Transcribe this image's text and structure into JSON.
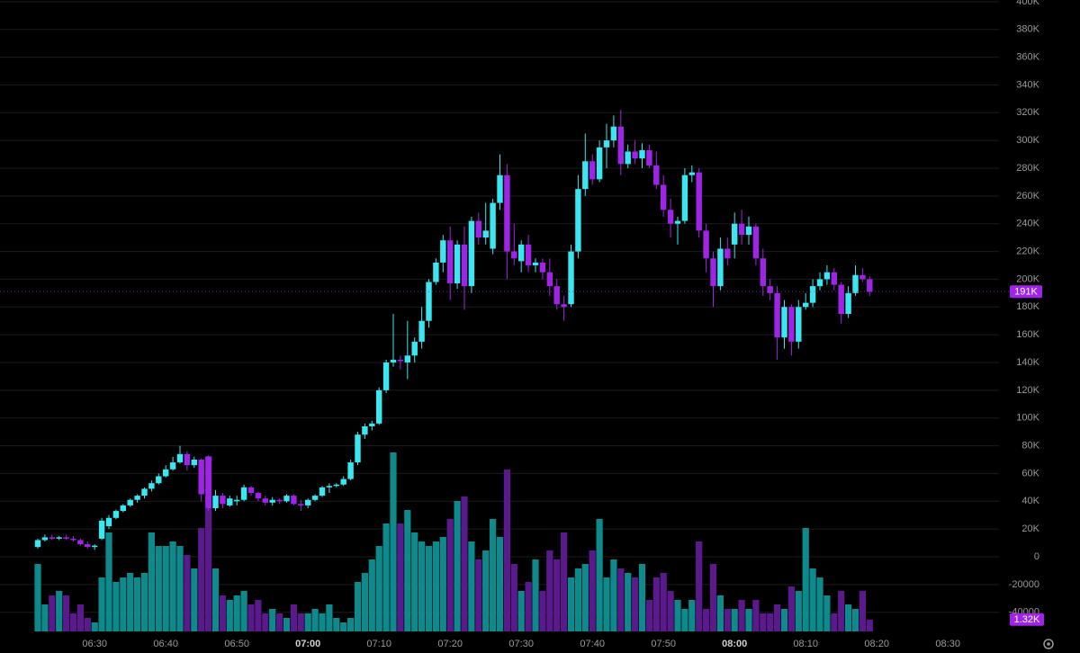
{
  "chart_data": {
    "type": "candlestick",
    "x": [
      "06:22",
      "06:23",
      "06:24",
      "06:25",
      "06:26",
      "06:27",
      "06:28",
      "06:29",
      "06:30",
      "06:31",
      "06:32",
      "06:33",
      "06:34",
      "06:35",
      "06:36",
      "06:37",
      "06:38",
      "06:39",
      "06:40",
      "06:41",
      "06:42",
      "06:43",
      "06:44",
      "06:45",
      "06:46",
      "06:47",
      "06:48",
      "06:49",
      "06:50",
      "06:51",
      "06:52",
      "06:53",
      "06:54",
      "06:55",
      "06:56",
      "06:57",
      "06:58",
      "06:59",
      "07:00",
      "07:01",
      "07:02",
      "07:03",
      "07:04",
      "07:05",
      "07:06",
      "07:07",
      "07:08",
      "07:09",
      "07:10",
      "07:11",
      "07:12",
      "07:13",
      "07:14",
      "07:15",
      "07:16",
      "07:17",
      "07:18",
      "07:19",
      "07:20",
      "07:21",
      "07:22",
      "07:23",
      "07:24",
      "07:25",
      "07:26",
      "07:27",
      "07:28",
      "07:29",
      "07:30",
      "07:31",
      "07:32",
      "07:33",
      "07:34",
      "07:35",
      "07:36",
      "07:37",
      "07:38",
      "07:39",
      "07:40",
      "07:41",
      "07:42",
      "07:43",
      "07:44",
      "07:45",
      "07:46",
      "07:47",
      "07:48",
      "07:49",
      "07:50",
      "07:51",
      "07:52",
      "07:53",
      "07:54",
      "07:55",
      "07:56",
      "07:57",
      "07:58",
      "07:59",
      "08:00",
      "08:01",
      "08:02",
      "08:03",
      "08:04",
      "08:05",
      "08:06",
      "08:07",
      "08:08",
      "08:09",
      "08:10",
      "08:11",
      "08:12",
      "08:13",
      "08:14",
      "08:15",
      "08:16",
      "08:17",
      "08:18",
      "08:19"
    ],
    "open": [
      7000,
      12000,
      14000,
      13000,
      14000,
      13000,
      12000,
      9000,
      7000,
      13000,
      22000,
      28000,
      33000,
      37000,
      41000,
      44000,
      49000,
      53000,
      58000,
      63000,
      68000,
      74000,
      66000,
      70000,
      72000,
      35000,
      44000,
      37000,
      40000,
      41000,
      50000,
      46000,
      42000,
      39000,
      41000,
      40000,
      44000,
      38000,
      37000,
      41000,
      44000,
      50000,
      51000,
      52000,
      56000,
      68000,
      88000,
      94000,
      96000,
      120000,
      140000,
      142000,
      140000,
      145000,
      155000,
      170000,
      198000,
      212000,
      228000,
      197000,
      225000,
      195000,
      242000,
      230000,
      222000,
      255000,
      275000,
      220000,
      213000,
      225000,
      210000,
      212000,
      205000,
      195000,
      182000,
      182000,
      220000,
      265000,
      285000,
      272000,
      295000,
      300000,
      310000,
      283000,
      292000,
      287000,
      293000,
      282000,
      268000,
      250000,
      240000,
      242000,
      275000,
      277000,
      235000,
      215000,
      195000,
      222000,
      225000,
      240000,
      232000,
      238000,
      215000,
      195000,
      190000,
      158000,
      180000,
      155000,
      180000,
      183000,
      195000,
      200000,
      205000,
      196000,
      175000,
      190000,
      203000,
      200000
    ],
    "high": [
      13000,
      16000,
      16000,
      15000,
      16000,
      15000,
      13000,
      11000,
      9000,
      28000,
      30000,
      34000,
      38000,
      42000,
      45000,
      50000,
      55000,
      60000,
      66000,
      72000,
      80000,
      76000,
      72000,
      71000,
      73000,
      48000,
      46000,
      44000,
      44000,
      52000,
      51000,
      47000,
      44000,
      43000,
      42000,
      45000,
      45000,
      41000,
      42000,
      45000,
      51000,
      53000,
      53000,
      58000,
      70000,
      90000,
      96000,
      98000,
      122000,
      142000,
      175000,
      145000,
      170000,
      158000,
      180000,
      200000,
      215000,
      232000,
      238000,
      228000,
      238000,
      245000,
      248000,
      255000,
      258000,
      290000,
      283000,
      240000,
      228000,
      232000,
      215000,
      215000,
      215000,
      200000,
      188000,
      225000,
      275000,
      305000,
      290000,
      300000,
      312000,
      318000,
      322000,
      297000,
      300000,
      298000,
      297000,
      292000,
      275000,
      258000,
      245000,
      280000,
      282000,
      280000,
      240000,
      220000,
      230000,
      230000,
      248000,
      250000,
      245000,
      240000,
      222000,
      200000,
      195000,
      185000,
      182000,
      185000,
      190000,
      200000,
      205000,
      210000,
      208000,
      198000,
      195000,
      210000,
      208000,
      202000
    ],
    "low": [
      6000,
      11000,
      12000,
      12000,
      12000,
      11000,
      8000,
      6000,
      5000,
      12000,
      20000,
      27000,
      32000,
      36000,
      39000,
      42000,
      47000,
      52000,
      57000,
      62000,
      67000,
      62000,
      64000,
      40000,
      33000,
      33000,
      35000,
      36000,
      37000,
      40000,
      44000,
      40000,
      37000,
      37000,
      38000,
      39000,
      37000,
      33000,
      35000,
      40000,
      43000,
      46000,
      50000,
      51000,
      55000,
      66000,
      85000,
      91000,
      95000,
      118000,
      137000,
      135000,
      128000,
      140000,
      150000,
      165000,
      196000,
      205000,
      185000,
      193000,
      178000,
      190000,
      225000,
      225000,
      218000,
      250000,
      200000,
      210000,
      205000,
      205000,
      205000,
      200000,
      188000,
      178000,
      170000,
      180000,
      215000,
      260000,
      268000,
      270000,
      280000,
      295000,
      275000,
      280000,
      283000,
      280000,
      280000,
      265000,
      245000,
      230000,
      225000,
      240000,
      270000,
      230000,
      205000,
      180000,
      192000,
      210000,
      215000,
      225000,
      225000,
      210000,
      188000,
      185000,
      142000,
      150000,
      145000,
      150000,
      178000,
      180000,
      192000,
      196000,
      192000,
      168000,
      172000,
      188000,
      198000,
      188000
    ],
    "close": [
      12000,
      14000,
      13000,
      14000,
      13000,
      12000,
      9000,
      7000,
      8000,
      26000,
      28000,
      33000,
      37000,
      41000,
      44000,
      49000,
      53000,
      58000,
      63000,
      68000,
      74000,
      66000,
      70000,
      45000,
      35000,
      44000,
      38000,
      42000,
      41000,
      50000,
      46000,
      42000,
      39000,
      41000,
      40000,
      44000,
      38000,
      37000,
      41000,
      44000,
      50000,
      51000,
      52000,
      56000,
      68000,
      88000,
      94000,
      96000,
      120000,
      140000,
      142000,
      141000,
      145000,
      155000,
      170000,
      198000,
      212000,
      228000,
      197000,
      225000,
      195000,
      242000,
      230000,
      235000,
      255000,
      275000,
      220000,
      215000,
      225000,
      210000,
      212000,
      205000,
      195000,
      182000,
      180000,
      220000,
      265000,
      285000,
      272000,
      295000,
      300000,
      310000,
      283000,
      292000,
      287000,
      293000,
      282000,
      268000,
      250000,
      240000,
      242000,
      275000,
      277000,
      235000,
      215000,
      195000,
      222000,
      215000,
      240000,
      232000,
      238000,
      215000,
      195000,
      190000,
      158000,
      180000,
      155000,
      180000,
      183000,
      195000,
      200000,
      205000,
      196000,
      175000,
      190000,
      203000,
      200000,
      191000
    ],
    "volume": [
      7500,
      3000,
      4000,
      4500,
      4000,
      2000,
      3000,
      1500,
      1000,
      6000,
      11000,
      5500,
      6000,
      6500,
      6000,
      6500,
      11000,
      9500,
      9500,
      10000,
      9500,
      8500,
      7000,
      11500,
      19500,
      7000,
      4000,
      3500,
      4000,
      4500,
      3000,
      3500,
      2000,
      2500,
      2000,
      1500,
      3000,
      2000,
      2000,
      2500,
      2000,
      3000,
      1500,
      1000,
      1500,
      5500,
      6500,
      8000,
      9500,
      12000,
      19900,
      12000,
      13500,
      11000,
      10000,
      9500,
      10000,
      10500,
      12500,
      14500,
      15000,
      10000,
      8000,
      9000,
      12500,
      10500,
      18000,
      7500,
      4500,
      5500,
      8000,
      4500,
      9000,
      8000,
      11000,
      6000,
      7000,
      7500,
      9000,
      12500,
      6000,
      8000,
      7000,
      6500,
      6000,
      7500,
      3500,
      6000,
      6500,
      4500,
      3500,
      2500,
      3500,
      10000,
      2500,
      7500,
      4000,
      2500,
      2500,
      3500,
      2500,
      3500,
      2000,
      2000,
      3000,
      2500,
      5000,
      4500,
      11500,
      7000,
      6000,
      4000,
      2000,
      4500,
      3000,
      2500,
      4500,
      1320
    ],
    "colors": {
      "up": "#3ae6f0",
      "down": "#a024e6",
      "volume_up": "#0f8a8c",
      "volume_down": "#5a1a8c"
    },
    "ylim": [
      -53800,
      401200
    ],
    "yticks": [
      {
        "value": 400000,
        "label": "400K"
      },
      {
        "value": 380000,
        "label": "380K"
      },
      {
        "value": 360000,
        "label": "360K"
      },
      {
        "value": 340000,
        "label": "340K"
      },
      {
        "value": 320000,
        "label": "320K"
      },
      {
        "value": 300000,
        "label": "300K"
      },
      {
        "value": 280000,
        "label": "280K"
      },
      {
        "value": 260000,
        "label": "260K"
      },
      {
        "value": 240000,
        "label": "240K"
      },
      {
        "value": 220000,
        "label": "220K"
      },
      {
        "value": 200000,
        "label": "200K"
      },
      {
        "value": 180000,
        "label": "180K"
      },
      {
        "value": 160000,
        "label": "160K"
      },
      {
        "value": 140000,
        "label": "140K"
      },
      {
        "value": 120000,
        "label": "120K"
      },
      {
        "value": 100000,
        "label": "100K"
      },
      {
        "value": 80000,
        "label": "80K"
      },
      {
        "value": 60000,
        "label": "60K"
      },
      {
        "value": 40000,
        "label": "40K"
      },
      {
        "value": 20000,
        "label": "20K"
      },
      0,
      -20000,
      -40000
    ],
    "xticks": [
      "06:30",
      "06:40",
      "06:50",
      "07:00",
      "07:10",
      "07:20",
      "07:30",
      "07:40",
      "07:50",
      "08:00",
      "08:10",
      "08:20",
      "08:30"
    ],
    "last_price": {
      "value": 191000,
      "label": "191K"
    },
    "last_volume": {
      "value": 1320,
      "label": "1.32K"
    },
    "grid": true
  }
}
